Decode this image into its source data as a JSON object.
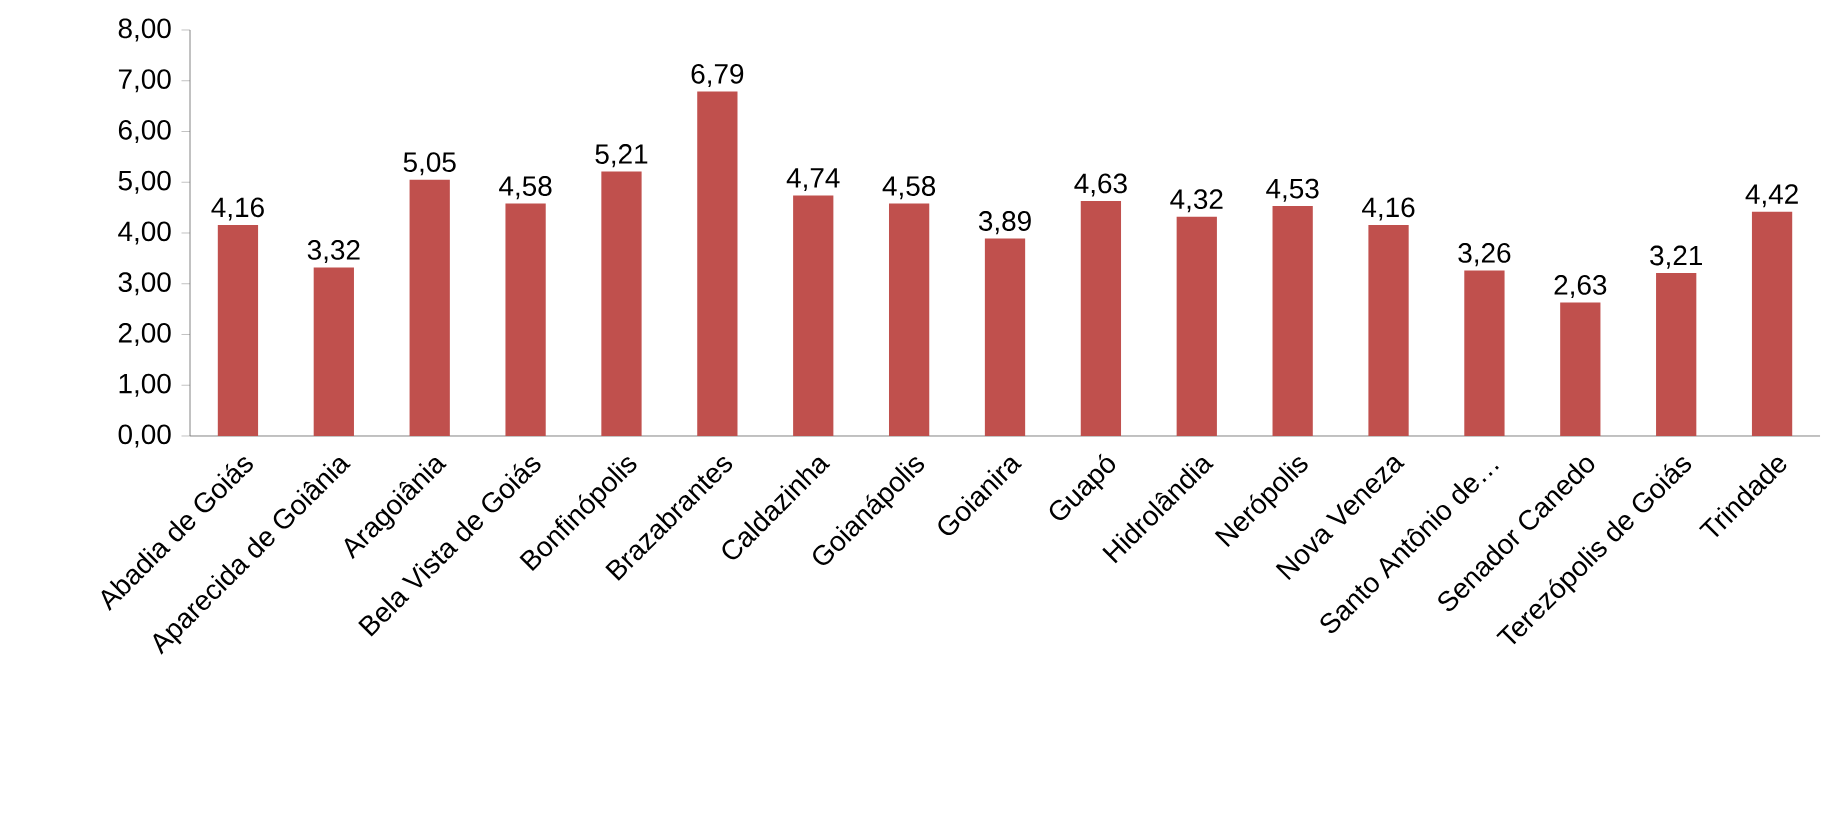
{
  "chart_data": {
    "type": "bar",
    "color": "#c0504d",
    "categories": [
      "Abadia de Goiás",
      "Aparecida de Goiânia",
      "Aragoiânia",
      "Bela Vista de Goiás",
      "Bonfinópolis",
      "Brazabrantes",
      "Caldazinha",
      "Goianápolis",
      "Goianira",
      "Guapó",
      "Hidrolândia",
      "Nerópolis",
      "Nova Veneza",
      "Santo Antônio de…",
      "Senador Canedo",
      "Terezópolis de Goiás",
      "Trindade"
    ],
    "values": [
      4.16,
      3.32,
      5.05,
      4.58,
      5.21,
      6.79,
      4.74,
      4.58,
      3.89,
      4.63,
      4.32,
      4.53,
      4.16,
      3.26,
      2.63,
      3.21,
      4.42
    ],
    "value_labels": [
      "4,16",
      "3,32",
      "5,05",
      "4,58",
      "5,21",
      "6,79",
      "4,74",
      "4,58",
      "3,89",
      "4,63",
      "4,32",
      "4,53",
      "4,16",
      "3,26",
      "2,63",
      "3,21",
      "4,42"
    ],
    "ylim": [
      0,
      8
    ],
    "yticks": [
      {
        "value": 0,
        "label": "0,00"
      },
      {
        "value": 1,
        "label": "1,00"
      },
      {
        "value": 2,
        "label": "2,00"
      },
      {
        "value": 3,
        "label": "3,00"
      },
      {
        "value": 4,
        "label": "4,00"
      },
      {
        "value": 5,
        "label": "5,00"
      },
      {
        "value": 6,
        "label": "6,00"
      },
      {
        "value": 7,
        "label": "7,00"
      },
      {
        "value": 8,
        "label": "8,00"
      }
    ],
    "grid": false
  }
}
